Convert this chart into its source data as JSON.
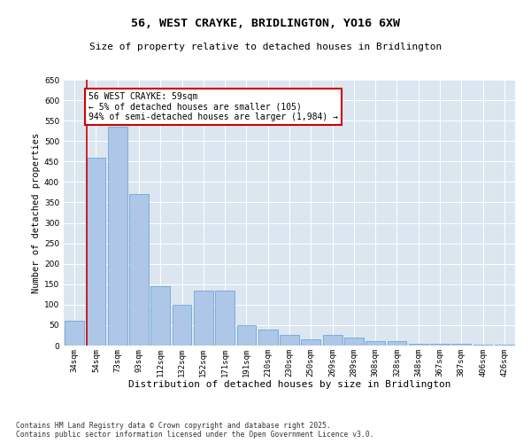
{
  "title": "56, WEST CRAYKE, BRIDLINGTON, YO16 6XW",
  "subtitle": "Size of property relative to detached houses in Bridlington",
  "xlabel": "Distribution of detached houses by size in Bridlington",
  "ylabel": "Number of detached properties",
  "categories": [
    "34sqm",
    "54sqm",
    "73sqm",
    "93sqm",
    "112sqm",
    "132sqm",
    "152sqm",
    "171sqm",
    "191sqm",
    "210sqm",
    "230sqm",
    "250sqm",
    "269sqm",
    "289sqm",
    "308sqm",
    "328sqm",
    "348sqm",
    "367sqm",
    "387sqm",
    "406sqm",
    "426sqm"
  ],
  "values": [
    60,
    460,
    535,
    370,
    145,
    100,
    135,
    135,
    50,
    40,
    25,
    15,
    25,
    20,
    10,
    10,
    5,
    5,
    5,
    2,
    2
  ],
  "bar_color": "#aec6e8",
  "bar_edge_color": "#5a9fd4",
  "vline_x_index": 1,
  "vline_color": "#cc0000",
  "annotation_text": "56 WEST CRAYKE: 59sqm\n← 5% of detached houses are smaller (105)\n94% of semi-detached houses are larger (1,984) →",
  "annotation_box_color": "#cc0000",
  "ylim": [
    0,
    650
  ],
  "yticks": [
    0,
    50,
    100,
    150,
    200,
    250,
    300,
    350,
    400,
    450,
    500,
    550,
    600,
    650
  ],
  "background_color": "#dce6f0",
  "footnote": "Contains HM Land Registry data © Crown copyright and database right 2025.\nContains public sector information licensed under the Open Government Licence v3.0.",
  "title_fontsize": 9.5,
  "subtitle_fontsize": 8,
  "xlabel_fontsize": 8,
  "ylabel_fontsize": 7.5,
  "tick_fontsize": 6.5,
  "footnote_fontsize": 5.8,
  "annotation_fontsize": 7
}
